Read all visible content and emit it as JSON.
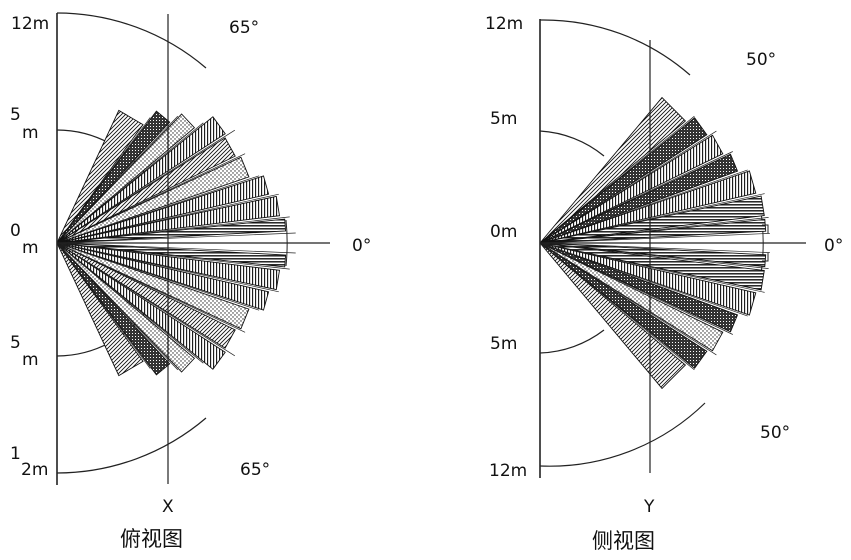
{
  "views": [
    {
      "name": "top",
      "caption": "俯视图",
      "axis_label": "X",
      "angle_upper": "65°",
      "angle_lower": "65°",
      "angle_zero": "0°",
      "range_labels": [
        "12m",
        "5",
        "m",
        "0",
        "m",
        "5",
        "m",
        "1",
        "2m"
      ],
      "zones": [
        {
          "a1": 54,
          "a2": 65,
          "r": 0.62,
          "pattern": "diag"
        },
        {
          "a1": 47,
          "a2": 53,
          "r": 0.7,
          "pattern": "dark"
        },
        {
          "a1": 40,
          "a2": 46,
          "r": 0.76,
          "pattern": "dots"
        },
        {
          "a1": 33,
          "a2": 39,
          "r": 0.85,
          "pattern": "vert"
        },
        {
          "a1": 26,
          "a2": 32,
          "r": 0.84,
          "pattern": "diag"
        },
        {
          "a1": 19,
          "a2": 25,
          "r": 0.86,
          "pattern": "dots"
        },
        {
          "a1": 13,
          "a2": 18,
          "r": 0.92,
          "pattern": "vert"
        },
        {
          "a1": 7,
          "a2": 12,
          "r": 0.95,
          "pattern": "vert"
        },
        {
          "a1": 3,
          "a2": 6,
          "r": 0.97,
          "pattern": "horiz"
        },
        {
          "a1": -6,
          "a2": -3,
          "r": 0.97,
          "pattern": "horiz"
        },
        {
          "a1": -12,
          "a2": -7,
          "r": 0.95,
          "pattern": "vert"
        },
        {
          "a1": -18,
          "a2": -13,
          "r": 0.92,
          "pattern": "vert"
        },
        {
          "a1": -25,
          "a2": -19,
          "r": 0.86,
          "pattern": "dots"
        },
        {
          "a1": -32,
          "a2": -26,
          "r": 0.84,
          "pattern": "diag"
        },
        {
          "a1": -39,
          "a2": -33,
          "r": 0.85,
          "pattern": "vert"
        },
        {
          "a1": -46,
          "a2": -40,
          "r": 0.76,
          "pattern": "dots"
        },
        {
          "a1": -53,
          "a2": -47,
          "r": 0.7,
          "pattern": "dark"
        },
        {
          "a1": -65,
          "a2": -54,
          "r": 0.62,
          "pattern": "diag"
        }
      ]
    },
    {
      "name": "side",
      "caption": "侧视图",
      "axis_label": "Y",
      "angle_upper": "50°",
      "angle_lower": "50°",
      "angle_zero": "0°",
      "range_labels": [
        "12m",
        "5m",
        "0m",
        "5m",
        "12m"
      ],
      "zones": [
        {
          "a1": 40,
          "a2": 50,
          "r": 0.84,
          "pattern": "diag"
        },
        {
          "a1": 33,
          "a2": 39,
          "r": 0.88,
          "pattern": "dark"
        },
        {
          "a1": 26,
          "a2": 32,
          "r": 0.9,
          "pattern": "vert"
        },
        {
          "a1": 20,
          "a2": 25,
          "r": 0.93,
          "pattern": "dark"
        },
        {
          "a1": 13,
          "a2": 19,
          "r": 0.98,
          "pattern": "vert"
        },
        {
          "a1": 7,
          "a2": 12,
          "r": 1.0,
          "pattern": "horiz"
        },
        {
          "a1": 3,
          "a2": 6,
          "r": 1.0,
          "pattern": "horiz"
        },
        {
          "a1": -6,
          "a2": -3,
          "r": 1.0,
          "pattern": "horiz"
        },
        {
          "a1": -12,
          "a2": -7,
          "r": 1.0,
          "pattern": "horiz"
        },
        {
          "a1": -19,
          "a2": -13,
          "r": 0.98,
          "pattern": "vert"
        },
        {
          "a1": -25,
          "a2": -20,
          "r": 0.93,
          "pattern": "dark"
        },
        {
          "a1": -32,
          "a2": -26,
          "r": 0.9,
          "pattern": "dots"
        },
        {
          "a1": -39,
          "a2": -33,
          "r": 0.88,
          "pattern": "dark"
        },
        {
          "a1": -50,
          "a2": -40,
          "r": 0.84,
          "pattern": "diag"
        }
      ]
    }
  ]
}
